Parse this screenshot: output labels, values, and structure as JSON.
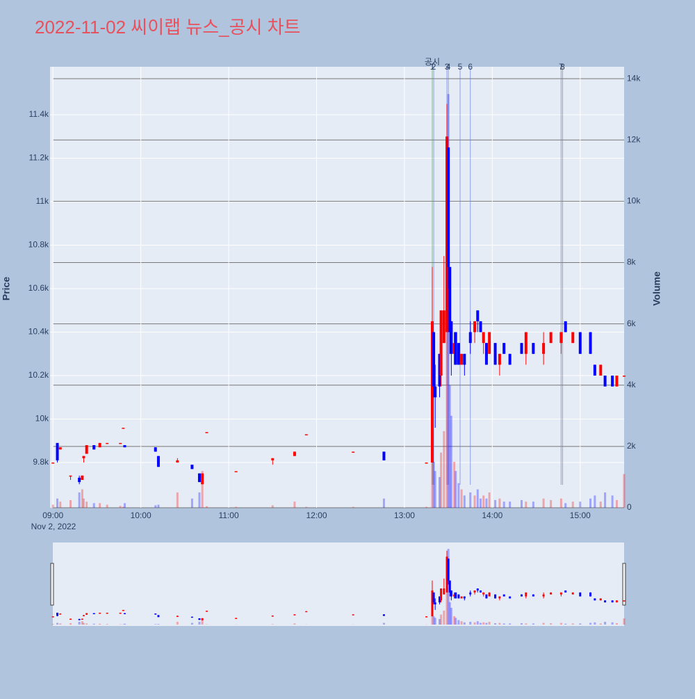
{
  "chart_data": {
    "type": "candlestick",
    "title": "2022-11-02 씨이랩 뉴스_공시 차트",
    "y_title": "Price",
    "y2_title": "Volume",
    "x_date_label": "Nov 2, 2022",
    "increasing_color": "#ff0000",
    "decreasing_color": "#0000ff",
    "xlim": [
      "08:58",
      "15:30"
    ],
    "xticks": [
      "09:00",
      "10:00",
      "11:00",
      "12:00",
      "13:00",
      "14:00",
      "15:00"
    ],
    "ylim": [
      9592,
      11621
    ],
    "yticks": [
      {
        "value": 9800,
        "label": "9.8k"
      },
      {
        "value": 10000,
        "label": "10k"
      },
      {
        "value": 10200,
        "label": "10.2k"
      },
      {
        "value": 10400,
        "label": "10.4k"
      },
      {
        "value": 10600,
        "label": "10.6k"
      },
      {
        "value": 10800,
        "label": "10.8k"
      },
      {
        "value": 11000,
        "label": "11k"
      },
      {
        "value": 11200,
        "label": "11.2k"
      },
      {
        "value": 11400,
        "label": "11.4k"
      }
    ],
    "y2lim": [
      0,
      14390
    ],
    "y2ticks": [
      0,
      {
        "value": 2000,
        "label": "2k"
      },
      {
        "value": 4000,
        "label": "4k"
      },
      {
        "value": 6000,
        "label": "6k"
      },
      {
        "value": 8000,
        "label": "8k"
      },
      {
        "value": 10000,
        "label": "10k"
      },
      {
        "value": 12000,
        "label": "12k"
      },
      {
        "value": 14000,
        "label": "14k"
      }
    ],
    "annotation_title": "공시",
    "annotations": [
      {
        "x": "13:19",
        "label": "1",
        "color": "#4caf50"
      },
      {
        "x": "13:20",
        "label": "2",
        "color": "#6b7fe0"
      },
      {
        "x": "13:29",
        "label": "3",
        "color": "#6b7fe0"
      },
      {
        "x": "13:30",
        "label": "4",
        "color": "#6b7fe0"
      },
      {
        "x": "13:38",
        "label": "5",
        "color": "#6b7fe0"
      },
      {
        "x": "13:45",
        "label": "6",
        "color": "#6b7fe0"
      },
      {
        "x": "14:47",
        "label": "7",
        "color": "#6b7fe0"
      },
      {
        "x": "14:48",
        "label": "8",
        "color": "#6b7fe0"
      }
    ],
    "x": [
      "09:00",
      "09:03",
      "09:05",
      "09:12",
      "09:18",
      "09:20",
      "09:21",
      "09:23",
      "09:28",
      "09:32",
      "09:37",
      "09:46",
      "09:48",
      "09:49",
      "10:10",
      "10:12",
      "10:25",
      "10:35",
      "10:40",
      "10:42",
      "10:45",
      "11:05",
      "11:30",
      "11:45",
      "11:53",
      "12:25",
      "12:46",
      "13:15",
      "13:19",
      "13:20",
      "13:21",
      "13:24",
      "13:25",
      "13:27",
      "13:29",
      "13:30",
      "13:31",
      "13:32",
      "13:34",
      "13:35",
      "13:37",
      "13:39",
      "13:41",
      "13:45",
      "13:48",
      "13:50",
      "13:52",
      "13:54",
      "13:56",
      "13:58",
      "14:02",
      "14:05",
      "14:08",
      "14:12",
      "14:20",
      "14:23",
      "14:28",
      "14:35",
      "14:40",
      "14:47",
      "14:50",
      "14:55",
      "15:00",
      "15:07",
      "15:10",
      "15:14",
      "15:17",
      "15:22",
      "15:25",
      "15:30"
    ],
    "open": [
      9800,
      9890,
      9860,
      9740,
      9730,
      9720,
      9820,
      9840,
      9880,
      9870,
      9890,
      9890,
      9960,
      9880,
      9870,
      9830,
      9800,
      9790,
      9750,
      9700,
      9940,
      9760,
      9810,
      9830,
      9930,
      9850,
      9850,
      9800,
      9800,
      10400,
      10150,
      10300,
      10200,
      10350,
      10400,
      11250,
      10700,
      10450,
      10300,
      10400,
      10350,
      10250,
      10300,
      10400,
      10400,
      10500,
      10450,
      10350,
      10350,
      10300,
      10350,
      10250,
      10350,
      10300,
      10350,
      10300,
      10350,
      10300,
      10350,
      10350,
      10450,
      10350,
      10400,
      10400,
      10250,
      10200,
      10200,
      10200,
      10150,
      10200
    ],
    "high": [
      9800,
      9890,
      9870,
      9740,
      9740,
      9740,
      9830,
      9880,
      9880,
      9890,
      9890,
      9890,
      9960,
      9880,
      9870,
      9830,
      9820,
      9790,
      9750,
      9750,
      9940,
      9760,
      9820,
      9850,
      9930,
      9850,
      9850,
      9800,
      10700,
      10400,
      10250,
      10300,
      10500,
      10750,
      11450,
      11250,
      10700,
      10450,
      10400,
      10400,
      10350,
      10300,
      10300,
      10450,
      10450,
      10500,
      10450,
      10400,
      10350,
      10400,
      10350,
      10300,
      10350,
      10300,
      10350,
      10400,
      10350,
      10400,
      10400,
      10400,
      10450,
      10400,
      10400,
      10400,
      10250,
      10250,
      10200,
      10200,
      10200,
      10200
    ],
    "low": [
      9800,
      9800,
      9860,
      9720,
      9700,
      9720,
      9800,
      9840,
      9860,
      9870,
      9890,
      9890,
      9960,
      9870,
      9850,
      9780,
      9800,
      9770,
      9710,
      9700,
      9940,
      9760,
      9790,
      9830,
      9930,
      9850,
      9810,
      9800,
      9800,
      10100,
      9960,
      10100,
      10150,
      10350,
      10400,
      10600,
      10300,
      10200,
      10250,
      10250,
      10250,
      10250,
      10200,
      10300,
      10350,
      10400,
      10400,
      10300,
      10250,
      10300,
      10250,
      10200,
      10300,
      10250,
      10300,
      10250,
      10300,
      10250,
      10350,
      10300,
      10400,
      10350,
      10300,
      10300,
      10200,
      10200,
      10150,
      10150,
      10150,
      10200
    ],
    "close": [
      9800,
      9810,
      9870,
      9740,
      9710,
      9740,
      9830,
      9880,
      9860,
      9890,
      9890,
      9890,
      9960,
      9870,
      9850,
      9780,
      9810,
      9770,
      9710,
      9750,
      9940,
      9760,
      9820,
      9850,
      9930,
      9850,
      9810,
      9800,
      10450,
      10150,
      10100,
      10150,
      10500,
      10500,
      11300,
      10700,
      10400,
      10300,
      10350,
      10250,
      10250,
      10300,
      10250,
      10350,
      10450,
      10450,
      10400,
      10400,
      10250,
      10400,
      10250,
      10300,
      10300,
      10250,
      10300,
      10400,
      10300,
      10350,
      10400,
      10400,
      10400,
      10400,
      10300,
      10300,
      10200,
      10250,
      10150,
      10150,
      10200,
      10200
    ],
    "volume": [
      100,
      300,
      200,
      250,
      500,
      600,
      300,
      200,
      150,
      150,
      100,
      60,
      30,
      150,
      80,
      100,
      500,
      300,
      500,
      1200,
      50,
      30,
      80,
      200,
      30,
      30,
      300,
      30,
      3500,
      1500,
      1200,
      1000,
      1800,
      2500,
      6000,
      13500,
      4000,
      3000,
      1500,
      1200,
      800,
      600,
      400,
      500,
      400,
      600,
      300,
      400,
      300,
      500,
      250,
      300,
      200,
      200,
      250,
      200,
      200,
      300,
      250,
      300,
      150,
      200,
      200,
      300,
      400,
      200,
      500,
      400,
      250,
      1100
    ]
  }
}
